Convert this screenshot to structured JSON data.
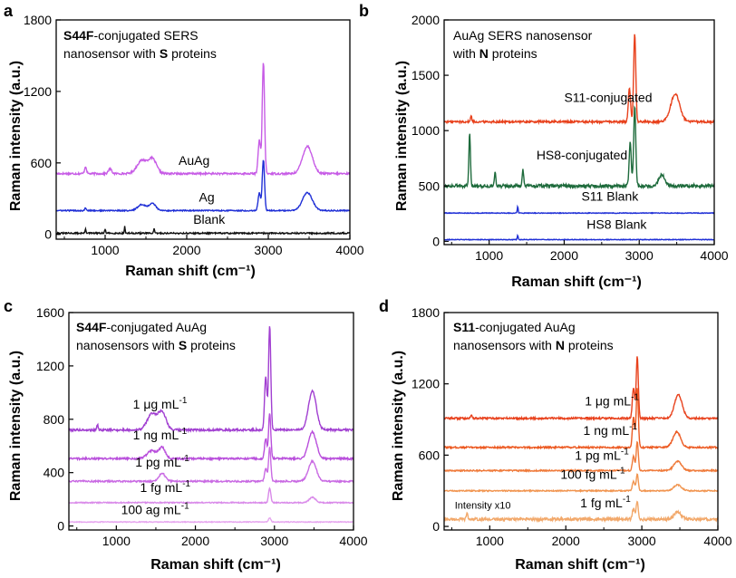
{
  "chart_data": [
    {
      "panel": "a",
      "type": "line",
      "title_bold": "S44F",
      "title_rest": "-conjugated SERS",
      "title_line2_pre": "nanosensor with ",
      "title_line2_bold": "S",
      "title_line2_post": " proteins",
      "xlabel": "Raman shift (cm⁻¹)",
      "ylabel": "Raman intensity (a.u.)",
      "xlim": [
        400,
        4000
      ],
      "ylim": [
        -40,
        1800
      ],
      "xticks": [
        1000,
        2000,
        3000,
        4000
      ],
      "yticks": [
        0,
        600,
        1200,
        1800
      ],
      "series": [
        {
          "name": "AuAg",
          "color": "#c75ce6",
          "baseline": 510,
          "noise": 8,
          "peaks": [
            [
              760,
              60,
              12
            ],
            [
              1060,
              40,
              20
            ],
            [
              1450,
              110,
              60
            ],
            [
              1580,
              120,
              50
            ],
            [
              2890,
              280,
              15
            ],
            [
              2940,
              940,
              14
            ],
            [
              3480,
              230,
              60
            ]
          ]
        },
        {
          "name": "Ag",
          "color": "#1f2fd6",
          "baseline": 200,
          "noise": 5,
          "peaks": [
            [
              760,
              20,
              12
            ],
            [
              1450,
              50,
              50
            ],
            [
              1580,
              60,
              40
            ],
            [
              2890,
              150,
              15
            ],
            [
              2940,
              430,
              14
            ],
            [
              3480,
              150,
              60
            ]
          ]
        },
        {
          "name": "Blank",
          "color": "#111111",
          "baseline": 10,
          "noise": 6,
          "peaks": [
            [
              760,
              40,
              6
            ],
            [
              1000,
              35,
              6
            ],
            [
              1240,
              60,
              5
            ],
            [
              1600,
              35,
              6
            ]
          ]
        }
      ],
      "labels": [
        {
          "text": "AuAg",
          "x": 1900,
          "y": 585
        },
        {
          "text": "Ag",
          "x": 2150,
          "y": 275
        },
        {
          "text": "Blank",
          "x": 2080,
          "y": 90
        }
      ]
    },
    {
      "panel": "b",
      "type": "line",
      "title_line1": "AuAg SERS nanosensor",
      "title_line2_pre": "with ",
      "title_line2_bold": "N",
      "title_line2_post": " proteins",
      "xlabel": "Raman shift (cm⁻¹)",
      "ylabel": "Raman intensity (a.u.)",
      "xlim": [
        400,
        4000
      ],
      "ylim": [
        -30,
        2000
      ],
      "xticks": [
        1000,
        2000,
        3000,
        4000
      ],
      "yticks": [
        0,
        500,
        1000,
        1500,
        2000
      ],
      "series": [
        {
          "name": "S11-conjugated",
          "color": "#e8411c",
          "baseline": 1080,
          "noise": 10,
          "peaks": [
            [
              760,
              60,
              8
            ],
            [
              2870,
              300,
              15
            ],
            [
              2940,
              800,
              14
            ],
            [
              3480,
              250,
              60
            ]
          ]
        },
        {
          "name": "HS8-conjugated",
          "color": "#1e6b3c",
          "baseline": 500,
          "noise": 15,
          "peaks": [
            [
              740,
              480,
              10
            ],
            [
              1080,
              120,
              10
            ],
            [
              1450,
              140,
              10
            ],
            [
              2880,
              400,
              14
            ],
            [
              2940,
              720,
              14
            ],
            [
              3300,
              100,
              40
            ]
          ]
        },
        {
          "name": "S11 Blank",
          "color": "#1f2fd6",
          "baseline": 255,
          "noise": 3,
          "peaks": [
            [
              1380,
              60,
              6
            ]
          ]
        },
        {
          "name": "HS8 Blank",
          "color": "#1f2fd6",
          "baseline": 15,
          "noise": 3,
          "peaks": [
            [
              1380,
              40,
              6
            ]
          ]
        }
      ],
      "labels": [
        {
          "text": "S11-conjugated",
          "x": 2000,
          "y": 1260
        },
        {
          "text": "HS8-conjugated",
          "x": 1630,
          "y": 740
        },
        {
          "text": "S11 Blank",
          "x": 2230,
          "y": 365
        },
        {
          "text": "HS8 Blank",
          "x": 2300,
          "y": 115
        }
      ]
    },
    {
      "panel": "c",
      "type": "line",
      "title_bold": "S44F",
      "title_rest": "-conjugated AuAg",
      "title_line2_pre": "nanosensors with ",
      "title_line2_bold": "S",
      "title_line2_post": " proteins",
      "xlabel": "Raman shift (cm⁻¹)",
      "ylabel": "Raman intensity (a.u.)",
      "xlim": [
        400,
        4000
      ],
      "ylim": [
        -30,
        1600
      ],
      "xticks": [
        1000,
        2000,
        3000,
        4000
      ],
      "yticks": [
        0,
        400,
        800,
        1200,
        1600
      ],
      "series": [
        {
          "name": "1 μg mL⁻¹",
          "color": "#a13fd1",
          "baseline": 720,
          "noise": 8,
          "peaks": [
            [
              760,
              40,
              10
            ],
            [
              1450,
              120,
              60
            ],
            [
              1580,
              130,
              50
            ],
            [
              2890,
              400,
              15
            ],
            [
              2940,
              780,
              14
            ],
            [
              3480,
              290,
              50
            ]
          ]
        },
        {
          "name": "1 ng mL⁻¹",
          "color": "#b94fdc",
          "baseline": 505,
          "noise": 7,
          "peaks": [
            [
              1450,
              60,
              60
            ],
            [
              1580,
              80,
              40
            ],
            [
              2890,
              150,
              15
            ],
            [
              2940,
              340,
              14
            ],
            [
              3480,
              200,
              50
            ]
          ]
        },
        {
          "name": "1 pg mL⁻¹",
          "color": "#c96ae3",
          "baseline": 335,
          "noise": 6,
          "peaks": [
            [
              1580,
              60,
              40
            ],
            [
              2890,
              100,
              15
            ],
            [
              2940,
              260,
              14
            ],
            [
              3480,
              150,
              50
            ]
          ]
        },
        {
          "name": "1 fg mL⁻¹",
          "color": "#d98ae9",
          "baseline": 175,
          "noise": 4,
          "peaks": [
            [
              2940,
              110,
              14
            ],
            [
              3480,
              40,
              40
            ]
          ]
        },
        {
          "name": "100 ag mL⁻¹",
          "color": "#e6a6ef",
          "baseline": 30,
          "noise": 3,
          "peaks": [
            [
              2940,
              30,
              15
            ]
          ]
        }
      ],
      "labels": [
        {
          "text": "1 μg mL",
          "sup": "-1",
          "x": 1210,
          "y": 880
        },
        {
          "text": "1 ng mL",
          "sup": "-1",
          "x": 1210,
          "y": 650
        },
        {
          "text": "1 pg mL",
          "sup": "-1",
          "x": 1240,
          "y": 445
        },
        {
          "text": "1 fg mL",
          "sup": "-1",
          "x": 1300,
          "y": 255
        },
        {
          "text": "100 ag mL",
          "sup": "-1",
          "x": 1060,
          "y": 90
        }
      ]
    },
    {
      "panel": "d",
      "type": "line",
      "title_bold": "S11",
      "title_rest": "-conjugated AuAg",
      "title_line2_pre": "nanosensors with ",
      "title_line2_bold": "N",
      "title_line2_post": " proteins",
      "xlabel": "Raman shift (cm⁻¹)",
      "ylabel": "Raman intensity (a.u.)",
      "xlim": [
        400,
        4000
      ],
      "ylim": [
        -30,
        1800
      ],
      "xticks": [
        1000,
        2000,
        3000,
        4000
      ],
      "yticks": [
        0,
        600,
        1200,
        1800
      ],
      "series": [
        {
          "name": "1 μg mL⁻¹",
          "color": "#e8411c",
          "baseline": 910,
          "noise": 8,
          "peaks": [
            [
              760,
              30,
              10
            ],
            [
              2890,
              260,
              15
            ],
            [
              2940,
              520,
              14
            ],
            [
              3480,
              200,
              50
            ]
          ]
        },
        {
          "name": "1 ng mL⁻¹",
          "color": "#ec5a22",
          "baseline": 665,
          "noise": 7,
          "peaks": [
            [
              2890,
              250,
              15
            ],
            [
              2940,
              500,
              14
            ],
            [
              3460,
              130,
              50
            ]
          ]
        },
        {
          "name": "1 pg mL⁻¹",
          "color": "#ef7a3a",
          "baseline": 470,
          "noise": 6,
          "peaks": [
            [
              2890,
              120,
              15
            ],
            [
              2940,
              240,
              14
            ],
            [
              3470,
              80,
              50
            ]
          ]
        },
        {
          "name": "100 fg mL⁻¹",
          "color": "#f19550",
          "baseline": 300,
          "noise": 5,
          "peaks": [
            [
              2890,
              80,
              15
            ],
            [
              2940,
              140,
              14
            ],
            [
              3470,
              50,
              50
            ]
          ]
        },
        {
          "name": "1 fg mL⁻¹",
          "color": "#f2a86a",
          "baseline": 60,
          "noise": 12,
          "peaks": [
            [
              700,
              50,
              10
            ],
            [
              2890,
              90,
              15
            ],
            [
              2940,
              150,
              14
            ],
            [
              3470,
              60,
              50
            ]
          ]
        }
      ],
      "labels": [
        {
          "text": "1 μg mL",
          "sup": "-1",
          "x": 2250,
          "y": 1020
        },
        {
          "text": "1 ng mL",
          "sup": "-1",
          "x": 2230,
          "y": 770
        },
        {
          "text": "1 pg mL",
          "sup": "-1",
          "x": 2120,
          "y": 560
        },
        {
          "text": "100 fg mL",
          "sup": "-1",
          "x": 1930,
          "y": 400
        },
        {
          "text": "1 fg mL",
          "sup": "-1",
          "x": 2190,
          "y": 160
        }
      ],
      "extra_label": {
        "text": "Intensity x10",
        "x": 540,
        "y": 150
      }
    }
  ]
}
